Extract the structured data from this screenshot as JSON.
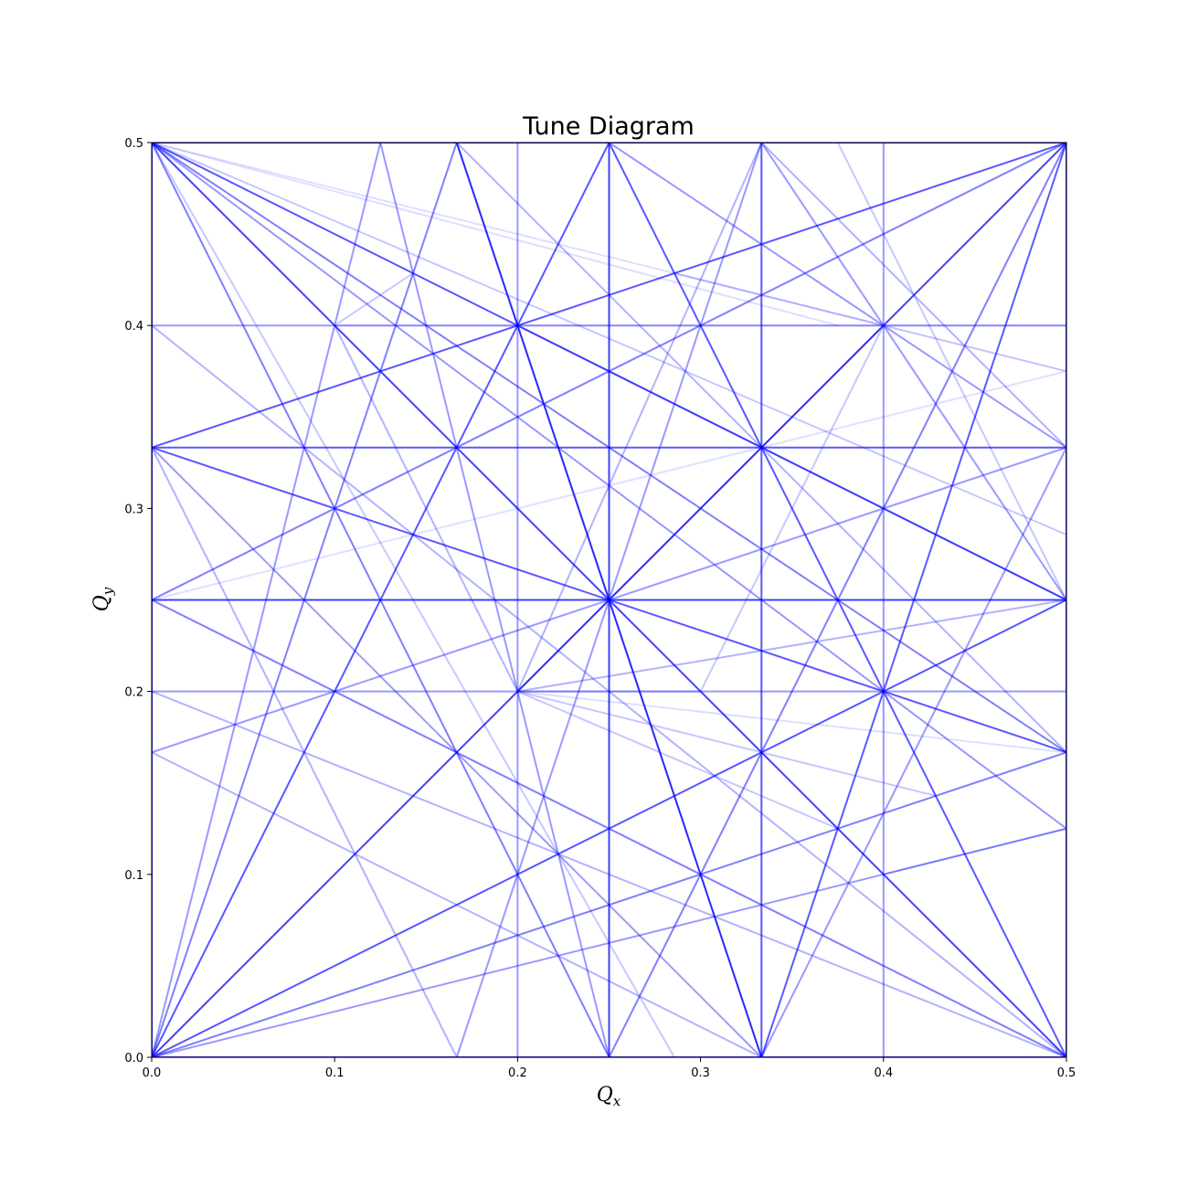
{
  "chart_data": {
    "type": "line",
    "title": "Tune Diagram",
    "xlabel": {
      "base": "Q",
      "sub": "x"
    },
    "ylabel": {
      "base": "Q",
      "sub": "y"
    },
    "xlim": [
      0,
      0.5
    ],
    "ylim": [
      0,
      0.5
    ],
    "xticks": [
      "0.0",
      "0.1",
      "0.2",
      "0.3",
      "0.4",
      "0.5"
    ],
    "yticks": [
      "0.0",
      "0.1",
      "0.2",
      "0.3",
      "0.4",
      "0.5"
    ],
    "grid": false,
    "line_color": "#0000ff",
    "resonance_orders": [
      1,
      2,
      3,
      4,
      5,
      6,
      7,
      8
    ],
    "series": [
      {
        "order": 1,
        "alpha": 0.9,
        "lines": [
          [
            [
              0,
              0
            ],
            [
              0.5,
              0
            ]
          ],
          [
            [
              0,
              0.5
            ],
            [
              0.5,
              0.5
            ]
          ],
          [
            [
              0,
              0
            ],
            [
              0,
              0.5
            ]
          ],
          [
            [
              0.5,
              0
            ],
            [
              0.5,
              0.5
            ]
          ]
        ]
      },
      {
        "order": 2,
        "alpha": 0.75,
        "lines": [
          [
            [
              0.25,
              0
            ],
            [
              0.25,
              0.5
            ]
          ],
          [
            [
              0,
              0.25
            ],
            [
              0.5,
              0.25
            ]
          ],
          [
            [
              0,
              0
            ],
            [
              0.5,
              0.5
            ]
          ],
          [
            [
              0,
              0.5
            ],
            [
              0.5,
              0
            ]
          ]
        ]
      },
      {
        "order": 3,
        "alpha": 0.65,
        "lines": [
          [
            [
              0.3333,
              0
            ],
            [
              0.3333,
              0.5
            ]
          ],
          [
            [
              0,
              0.3333
            ],
            [
              0.5,
              0.3333
            ]
          ],
          [
            [
              0,
              0
            ],
            [
              0.25,
              0.5
            ]
          ],
          [
            [
              0,
              0
            ],
            [
              0.5,
              0.25
            ]
          ],
          [
            [
              0.25,
              0.5
            ],
            [
              0.5,
              0
            ]
          ],
          [
            [
              0,
              0.5
            ],
            [
              0.5,
              0.25
            ]
          ],
          [
            [
              0.3333,
              0
            ],
            [
              0.5,
              0.5
            ]
          ],
          [
            [
              0.3333,
              0
            ],
            [
              0.1667,
              0.5
            ]
          ],
          [
            [
              0,
              0.3333
            ],
            [
              0.5,
              0.5
            ]
          ],
          [
            [
              0,
              0.3333
            ],
            [
              0.5,
              0.1667
            ]
          ]
        ]
      },
      {
        "order": 4,
        "alpha": 0.5,
        "lines": [
          [
            [
              0,
              0
            ],
            [
              0.1667,
              0.5
            ]
          ],
          [
            [
              0,
              0
            ],
            [
              0.5,
              0.1667
            ]
          ],
          [
            [
              0.1667,
              0.5
            ],
            [
              0.3333,
              0
            ]
          ],
          [
            [
              0,
              0.5
            ],
            [
              0.5,
              0.1667
            ]
          ],
          [
            [
              0.25,
              0
            ],
            [
              0.5,
              0.5
            ]
          ],
          [
            [
              0.25,
              0
            ],
            [
              0,
              0.5
            ]
          ],
          [
            [
              0,
              0.25
            ],
            [
              0.5,
              0.5
            ]
          ],
          [
            [
              0,
              0.25
            ],
            [
              0.5,
              0
            ]
          ]
        ]
      },
      {
        "order": 5,
        "alpha": 0.4,
        "lines": [
          [
            [
              0.2,
              0
            ],
            [
              0.2,
              0.5
            ]
          ],
          [
            [
              0.4,
              0
            ],
            [
              0.4,
              0.5
            ]
          ],
          [
            [
              0,
              0.2
            ],
            [
              0.5,
              0.2
            ]
          ],
          [
            [
              0,
              0.4
            ],
            [
              0.5,
              0.4
            ]
          ],
          [
            [
              0,
              0
            ],
            [
              0.125,
              0.5
            ]
          ],
          [
            [
              0,
              0
            ],
            [
              0.5,
              0.125
            ]
          ],
          [
            [
              0.125,
              0.5
            ],
            [
              0.25,
              0
            ]
          ],
          [
            [
              0,
              0.5
            ],
            [
              0.5,
              0.125
            ]
          ],
          [
            [
              0,
              0.3333
            ],
            [
              0.3333,
              0
            ]
          ],
          [
            [
              0.3333,
              0.5
            ],
            [
              0.5,
              0.25
            ]
          ],
          [
            [
              0.25,
              0.5
            ],
            [
              0.5,
              0.3333
            ]
          ],
          [
            [
              0.5,
              0.3333
            ],
            [
              0.3333,
              0
            ]
          ],
          [
            [
              0.1667,
              0
            ],
            [
              0.3333,
              0.5
            ]
          ],
          [
            [
              0,
              0.1667
            ],
            [
              0.5,
              0.3333
            ]
          ]
        ]
      },
      {
        "order": 6,
        "alpha": 0.3,
        "lines": [
          [
            [
              0,
              0.3333
            ],
            [
              0.1667,
              0
            ]
          ],
          [
            [
              0,
              0.1667
            ],
            [
              0.3333,
              0
            ]
          ],
          [
            [
              0.3333,
              0.5
            ],
            [
              0.5,
              0.3333
            ]
          ],
          [
            [
              0.1667,
              0.5
            ],
            [
              0.5,
              0.1667
            ]
          ],
          [
            [
              0.2,
              0.4
            ],
            [
              0.5,
              0.25
            ]
          ],
          [
            [
              0.2,
              0.2
            ],
            [
              0.5,
              0.25
            ]
          ],
          [
            [
              0.2,
              0.2
            ],
            [
              0.1,
              0.4
            ]
          ],
          [
            [
              0.2,
              0.2
            ],
            [
              0.3333,
              0.5
            ]
          ],
          [
            [
              0,
              0.2
            ],
            [
              0.5,
              0
            ]
          ],
          [
            [
              0,
              0.4
            ],
            [
              0.5,
              0
            ]
          ],
          [
            [
              0.2,
              0.2
            ],
            [
              0.4,
              0.4
            ]
          ]
        ]
      },
      {
        "order": 7,
        "alpha": 0.22,
        "lines": [
          [
            [
              0,
              0.5
            ],
            [
              0.2857,
              0
            ]
          ],
          [
            [
              0,
              0.5
            ],
            [
              0.5,
              0.2857
            ]
          ],
          [
            [
              0.1,
              0.4
            ],
            [
              0.1429,
              0.4286
            ]
          ],
          [
            [
              0.2,
              0.2
            ],
            [
              0.4286,
              0.1429
            ]
          ],
          [
            [
              0.375,
              0.5
            ],
            [
              0.5,
              0.25
            ]
          ],
          [
            [
              0.3,
              0.2
            ],
            [
              0.4,
              0.4
            ]
          ],
          [
            [
              0.2,
              0.2
            ],
            [
              0.3,
              0.2
            ]
          ],
          [
            [
              0.2857,
              0.4286
            ],
            [
              0.4,
              0.4
            ]
          ],
          [
            [
              0.2,
              0.2
            ],
            [
              0.375,
              0.125
            ]
          ],
          [
            [
              0.4,
              0.1
            ],
            [
              0.5,
              0.125
            ]
          ]
        ]
      },
      {
        "order": 8,
        "alpha": 0.13,
        "lines": [
          [
            [
              0,
              0.5
            ],
            [
              0.5,
              0.375
            ]
          ],
          [
            [
              0,
              0.25
            ],
            [
              0.5,
              0.375
            ]
          ],
          [
            [
              0.4,
              0.4
            ],
            [
              0.5,
              0.375
            ]
          ],
          [
            [
              0.1,
              0.4
            ],
            [
              0.5,
              0.4
            ]
          ],
          [
            [
              0,
              0.5
            ],
            [
              0.375,
              0.4
            ]
          ],
          [
            [
              0.2,
              0.2
            ],
            [
              0.5,
              0.1667
            ]
          ]
        ]
      }
    ]
  }
}
